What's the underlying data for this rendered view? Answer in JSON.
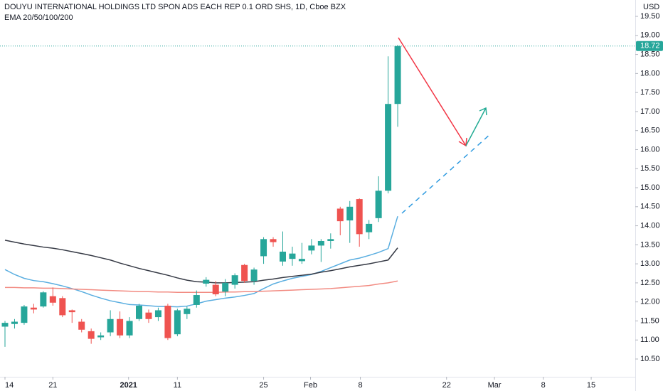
{
  "chart_data": {
    "type": "candlestick",
    "title": "DOUYU INTERNATIONAL HOLDINGS LTD SPON ADS EACH REP 0.1 ORD SHS, 1D, Cboe BZX",
    "subtitle": "EMA 20/50/100/200",
    "currency": "USD",
    "up_color": "#26a69a",
    "down_color": "#ef5350",
    "open": [
      11.35,
      11.42,
      11.45,
      11.85,
      11.88,
      12.15,
      12.1,
      11.78,
      11.48,
      11.23,
      11.07,
      11.2,
      11.55,
      11.12,
      11.55,
      11.72,
      11.6,
      11.9,
      11.15,
      11.68,
      11.92,
      12.48,
      12.45,
      12.27,
      12.45,
      12.97,
      12.55,
      13.2,
      13.65,
      13.06,
      13.13,
      13.07,
      13.35,
      13.48,
      13.6,
      14.45,
      14.14,
      14.7,
      13.83,
      14.2,
      14.92,
      17.2
    ],
    "high": [
      11.5,
      11.55,
      11.92,
      11.95,
      12.28,
      12.38,
      12.15,
      11.8,
      11.55,
      11.3,
      11.2,
      11.78,
      11.75,
      11.6,
      11.95,
      11.8,
      11.85,
      11.95,
      11.82,
      11.88,
      12.3,
      12.65,
      12.55,
      12.6,
      12.75,
      13.0,
      12.9,
      13.7,
      13.7,
      13.85,
      13.45,
      13.55,
      13.65,
      13.65,
      13.8,
      14.5,
      14.65,
      14.72,
      14.15,
      15.3,
      18.45,
      18.75
    ],
    "low": [
      10.82,
      11.3,
      11.4,
      11.7,
      11.85,
      11.9,
      11.6,
      11.45,
      11.2,
      10.9,
      11.0,
      11.1,
      11.05,
      11.05,
      11.5,
      11.45,
      11.5,
      11.0,
      11.1,
      11.55,
      11.85,
      12.4,
      12.15,
      12.15,
      12.35,
      12.5,
      12.45,
      13.0,
      13.45,
      12.95,
      12.95,
      13.0,
      13.25,
      13.05,
      13.4,
      13.75,
      13.55,
      13.45,
      13.65,
      14.1,
      14.85,
      16.6
    ],
    "close": [
      11.45,
      11.48,
      11.88,
      11.8,
      12.25,
      11.98,
      11.65,
      11.73,
      11.27,
      11.03,
      11.12,
      11.55,
      11.12,
      11.5,
      11.9,
      11.55,
      11.78,
      11.05,
      11.78,
      11.82,
      12.18,
      12.58,
      12.2,
      12.5,
      12.7,
      12.55,
      12.85,
      13.65,
      13.57,
      13.32,
      13.27,
      13.13,
      13.48,
      13.6,
      13.65,
      14.12,
      14.5,
      13.78,
      14.05,
      14.92,
      17.2,
      18.72
    ],
    "series": [
      {
        "color": "#5aaee0",
        "values": [
          12.85,
          12.72,
          12.62,
          12.56,
          12.53,
          12.48,
          12.42,
          12.35,
          12.27,
          12.18,
          12.1,
          12.03,
          11.98,
          11.93,
          11.92,
          11.9,
          11.88,
          11.88,
          11.87,
          11.89,
          11.95,
          12.02,
          12.06,
          12.1,
          12.13,
          12.17,
          12.22,
          12.35,
          12.47,
          12.55,
          12.62,
          12.67,
          12.72,
          12.8,
          12.9,
          13.0,
          13.1,
          13.15,
          13.22,
          13.3,
          13.4,
          14.25
        ]
      },
      {
        "color": "#f28b82",
        "values": [
          12.38,
          12.38,
          12.37,
          12.37,
          12.36,
          12.36,
          12.35,
          12.34,
          12.33,
          12.32,
          12.31,
          12.3,
          12.29,
          12.28,
          12.27,
          12.27,
          12.26,
          12.26,
          12.25,
          12.25,
          12.25,
          12.25,
          12.25,
          12.26,
          12.26,
          12.27,
          12.27,
          12.28,
          12.29,
          12.3,
          12.31,
          12.32,
          12.33,
          12.34,
          12.35,
          12.37,
          12.39,
          12.41,
          12.43,
          12.47,
          12.5,
          12.55
        ]
      },
      {
        "color": "#363a45",
        "values": [
          13.62,
          13.57,
          13.52,
          13.48,
          13.44,
          13.41,
          13.37,
          13.32,
          13.27,
          13.22,
          13.16,
          13.1,
          13.02,
          12.95,
          12.88,
          12.82,
          12.76,
          12.7,
          12.63,
          12.57,
          12.53,
          12.52,
          12.5,
          12.5,
          12.51,
          12.52,
          12.53,
          12.57,
          12.6,
          12.64,
          12.67,
          12.7,
          12.73,
          12.78,
          12.82,
          12.87,
          12.92,
          12.96,
          13.0,
          13.05,
          13.1,
          13.42
        ]
      }
    ],
    "last_price": 18.72,
    "xlim": [
      -0.52,
      65.8
    ],
    "xticks": [
      {
        "value": 0,
        "label": "14"
      },
      {
        "value": 5,
        "label": "21"
      },
      {
        "value": 12.9,
        "label": "2021"
      },
      {
        "value": 18,
        "label": "11"
      },
      {
        "value": 27,
        "label": "25"
      },
      {
        "value": 31.9,
        "label": "Feb"
      },
      {
        "value": 37.1,
        "label": "8"
      },
      {
        "value": 46.1,
        "label": "22"
      },
      {
        "value": 51.1,
        "label": "Mar"
      },
      {
        "value": 56.2,
        "label": "8"
      },
      {
        "value": 61.2,
        "label": "15"
      }
    ],
    "ylim": [
      10.22,
      19.93
    ],
    "yticks": [
      {
        "value": 10.5,
        "label": "10.50"
      },
      {
        "value": 11,
        "label": "11.00"
      },
      {
        "value": 11.5,
        "label": "11.50"
      },
      {
        "value": 12,
        "label": "12.00"
      },
      {
        "value": 12.5,
        "label": "12.50"
      },
      {
        "value": 13,
        "label": "13.00"
      },
      {
        "value": 13.5,
        "label": "13.50"
      },
      {
        "value": 14,
        "label": "14.00"
      },
      {
        "value": 14.5,
        "label": "14.50"
      },
      {
        "value": 15,
        "label": "15.00"
      },
      {
        "value": 15.5,
        "label": "15.50"
      },
      {
        "value": 16,
        "label": "16.00"
      },
      {
        "value": 16.5,
        "label": "16.50"
      },
      {
        "value": 17,
        "label": "17.00"
      },
      {
        "value": 17.5,
        "label": "17.50"
      },
      {
        "value": 18,
        "label": "18.00"
      },
      {
        "value": 18.5,
        "label": "18.50"
      },
      {
        "value": 19,
        "label": "19.00"
      },
      {
        "value": 19.5,
        "label": "19.50"
      }
    ],
    "grid": false
  }
}
